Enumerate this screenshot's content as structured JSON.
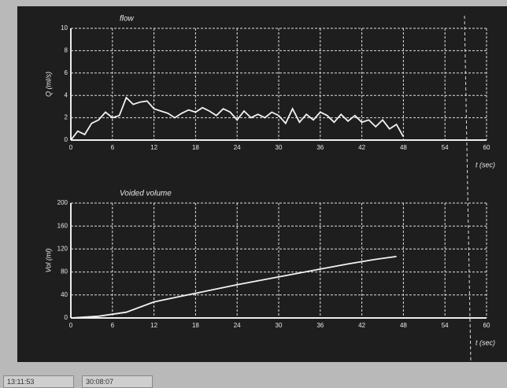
{
  "chart_data": [
    {
      "type": "line",
      "title": "flow",
      "ylabel": "Q (ml/s)",
      "xlabel": "t (sec)",
      "color": "#f2f2f2",
      "grid": true,
      "x": [
        0,
        1,
        2,
        3,
        4,
        5,
        6,
        7,
        8,
        9,
        10,
        11,
        12,
        13,
        14,
        15,
        16,
        17,
        18,
        19,
        20,
        21,
        22,
        23,
        24,
        25,
        26,
        27,
        28,
        29,
        30,
        31,
        32,
        33,
        34,
        35,
        36,
        37,
        38,
        39,
        40,
        41,
        42,
        43,
        44,
        45,
        46,
        47,
        48
      ],
      "values": [
        0,
        0.8,
        0.5,
        1.5,
        1.8,
        2.5,
        2.0,
        2.2,
        3.8,
        3.2,
        3.4,
        3.5,
        2.8,
        2.6,
        2.4,
        2.0,
        2.4,
        2.7,
        2.5,
        2.9,
        2.6,
        2.2,
        2.8,
        2.5,
        1.8,
        2.6,
        2.0,
        2.3,
        2.0,
        2.5,
        2.2,
        1.5,
        2.8,
        1.6,
        2.3,
        1.8,
        2.5,
        2.2,
        1.6,
        2.3,
        1.7,
        2.2,
        1.6,
        1.8,
        1.2,
        1.8,
        1.0,
        1.4,
        0.3
      ],
      "xlim": [
        0,
        60
      ],
      "ylim": [
        0,
        10
      ],
      "xticks": [
        0,
        6,
        12,
        18,
        24,
        30,
        36,
        42,
        48,
        54,
        60
      ],
      "yticks": [
        0,
        2,
        4,
        6,
        8,
        10
      ]
    },
    {
      "type": "line",
      "title": "Voided volume",
      "ylabel": "Vol (ml)",
      "xlabel": "t (sec)",
      "color": "#f2f2f2",
      "grid": true,
      "x": [
        0,
        4,
        8,
        12,
        16,
        20,
        24,
        28,
        32,
        36,
        40,
        44,
        47
      ],
      "values": [
        0,
        3,
        10,
        28,
        38,
        48,
        58,
        67,
        76,
        85,
        94,
        102,
        107
      ],
      "xlim": [
        0,
        60
      ],
      "ylim": [
        0,
        200
      ],
      "xticks": [
        0,
        6,
        12,
        18,
        24,
        30,
        36,
        42,
        48,
        54,
        60
      ],
      "yticks": [
        0,
        40,
        80,
        120,
        160,
        200
      ]
    }
  ],
  "status_bar": {
    "left": "13:11:53",
    "right": "30:08:07"
  }
}
